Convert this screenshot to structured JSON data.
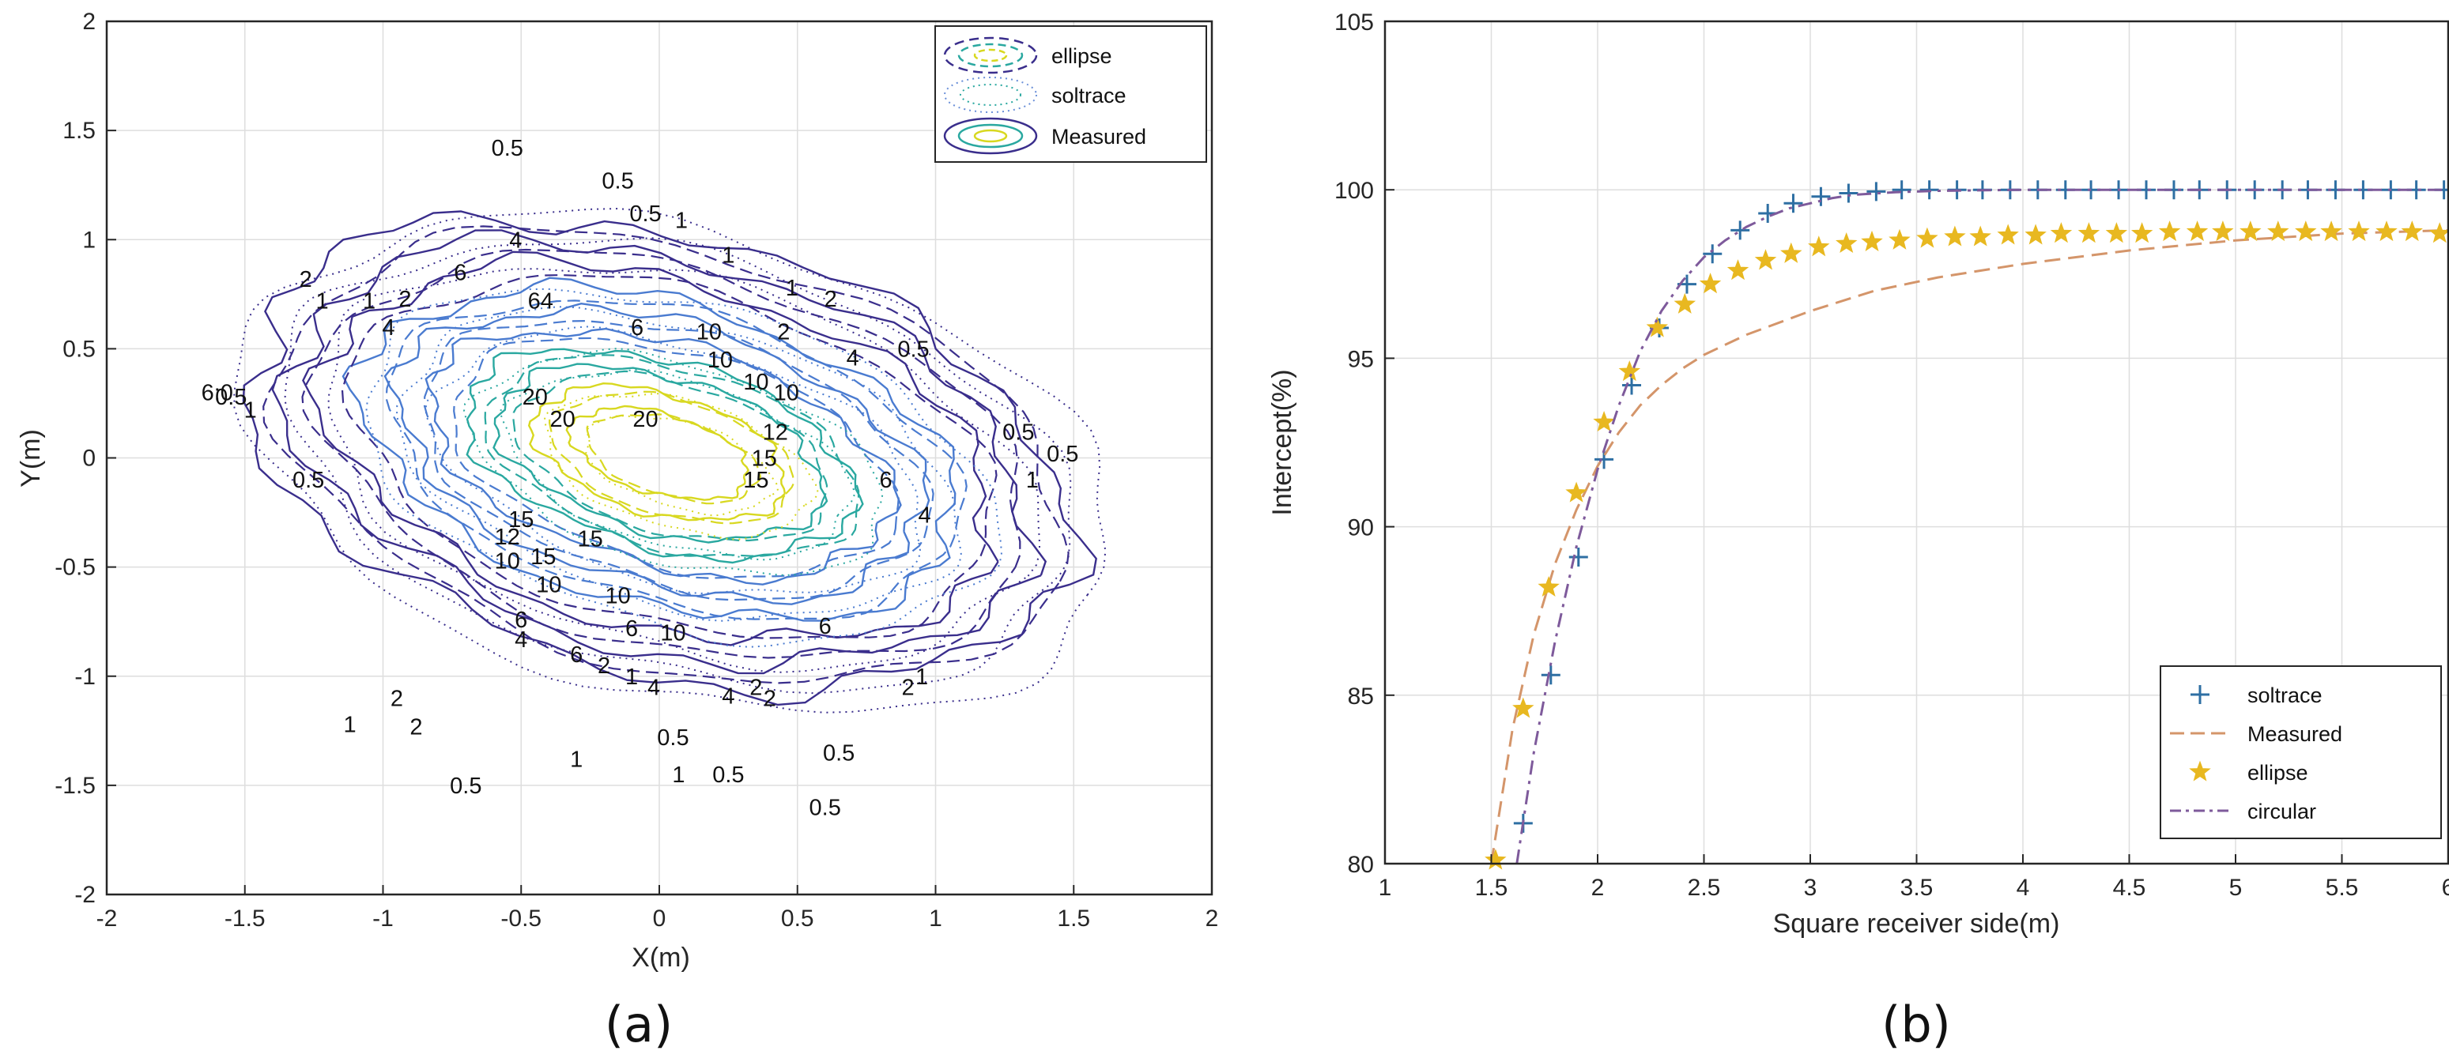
{
  "chart_data": [
    {
      "panel": "(a)",
      "type": "contour",
      "xlabel": "X(m)",
      "ylabel": "Y(m)",
      "xlim": [
        -2,
        2
      ],
      "ylim": [
        -2,
        2
      ],
      "xticks": [
        "-2",
        "-1.5",
        "-1",
        "-0.5",
        "0",
        "0.5",
        "1",
        "1.5",
        "2"
      ],
      "yticks": [
        "-2",
        "-1.5",
        "-1",
        "-0.5",
        "0",
        "0.5",
        "1",
        "1.5",
        "2"
      ],
      "grid": true,
      "legend": {
        "position": "top-right",
        "entries": [
          "ellipse",
          "soltrace",
          "Measured"
        ]
      },
      "levels": [
        0.5,
        1,
        2,
        4,
        6,
        10,
        12,
        15,
        20
      ],
      "colors": {
        "low": "#3a2e8c",
        "mid": "#4a7bd0",
        "teal": "#2aa8a0",
        "high": "#d8d820"
      },
      "contour_labels": [
        {
          "t": "0.5",
          "x": -0.55,
          "y": 1.42
        },
        {
          "t": "0.5",
          "x": -0.15,
          "y": 1.27
        },
        {
          "t": "0.5",
          "x": -0.05,
          "y": 1.12
        },
        {
          "t": "1",
          "x": 0.08,
          "y": 1.09
        },
        {
          "t": "1",
          "x": 0.25,
          "y": 0.93
        },
        {
          "t": "4",
          "x": -0.52,
          "y": 1.0
        },
        {
          "t": "6",
          "x": -0.72,
          "y": 0.85
        },
        {
          "t": "64",
          "x": -0.43,
          "y": 0.72
        },
        {
          "t": "6",
          "x": -0.08,
          "y": 0.6
        },
        {
          "t": "2",
          "x": -0.92,
          "y": 0.73
        },
        {
          "t": "4",
          "x": -0.98,
          "y": 0.6
        },
        {
          "t": "1",
          "x": -1.05,
          "y": 0.72
        },
        {
          "t": "2",
          "x": -1.28,
          "y": 0.82
        },
        {
          "t": "1",
          "x": -1.22,
          "y": 0.72
        },
        {
          "t": "1",
          "x": 0.48,
          "y": 0.78
        },
        {
          "t": "2",
          "x": 0.62,
          "y": 0.73
        },
        {
          "t": "2",
          "x": 0.45,
          "y": 0.58
        },
        {
          "t": "4",
          "x": 0.7,
          "y": 0.46
        },
        {
          "t": "10",
          "x": 0.18,
          "y": 0.58
        },
        {
          "t": "10",
          "x": 0.22,
          "y": 0.45
        },
        {
          "t": "10",
          "x": 0.35,
          "y": 0.35
        },
        {
          "t": "10",
          "x": 0.46,
          "y": 0.3
        },
        {
          "t": "0.5",
          "x": 0.92,
          "y": 0.5
        },
        {
          "t": "0.5",
          "x": 1.3,
          "y": 0.12
        },
        {
          "t": "0.5",
          "x": 1.46,
          "y": 0.02
        },
        {
          "t": "1",
          "x": 1.35,
          "y": -0.1
        },
        {
          "t": "20",
          "x": -0.45,
          "y": 0.28
        },
        {
          "t": "20",
          "x": -0.35,
          "y": 0.18
        },
        {
          "t": "20",
          "x": -0.05,
          "y": 0.18
        },
        {
          "t": "12",
          "x": 0.42,
          "y": 0.12
        },
        {
          "t": "15",
          "x": 0.38,
          "y": 0.0
        },
        {
          "t": "15",
          "x": 0.35,
          "y": -0.1
        },
        {
          "t": "6",
          "x": 0.82,
          "y": -0.1
        },
        {
          "t": "4",
          "x": 0.96,
          "y": -0.26
        },
        {
          "t": "15",
          "x": -0.5,
          "y": -0.28
        },
        {
          "t": "12",
          "x": -0.55,
          "y": -0.36
        },
        {
          "t": "15",
          "x": -0.42,
          "y": -0.45
        },
        {
          "t": "15",
          "x": -0.25,
          "y": -0.37
        },
        {
          "t": "10",
          "x": -0.55,
          "y": -0.47
        },
        {
          "t": "10",
          "x": -0.4,
          "y": -0.58
        },
        {
          "t": "10",
          "x": -0.15,
          "y": -0.63
        },
        {
          "t": "6",
          "x": -0.5,
          "y": -0.74
        },
        {
          "t": "6",
          "x": -0.1,
          "y": -0.78
        },
        {
          "t": "10",
          "x": 0.05,
          "y": -0.8
        },
        {
          "t": "6",
          "x": 0.6,
          "y": -0.77
        },
        {
          "t": "4",
          "x": -0.5,
          "y": -0.83
        },
        {
          "t": "6",
          "x": -0.3,
          "y": -0.9
        },
        {
          "t": "2",
          "x": -0.2,
          "y": -0.95
        },
        {
          "t": "1",
          "x": -0.1,
          "y": -1.0
        },
        {
          "t": "4",
          "x": -0.02,
          "y": -1.05
        },
        {
          "t": "4",
          "x": 0.25,
          "y": -1.09
        },
        {
          "t": "2",
          "x": 0.35,
          "y": -1.05
        },
        {
          "t": "2",
          "x": 0.4,
          "y": -1.1
        },
        {
          "t": "2",
          "x": -0.95,
          "y": -1.1
        },
        {
          "t": "1",
          "x": -1.12,
          "y": -1.22
        },
        {
          "t": "2",
          "x": -0.88,
          "y": -1.23
        },
        {
          "t": "2",
          "x": 0.9,
          "y": -1.05
        },
        {
          "t": "1",
          "x": 0.95,
          "y": -1.0
        },
        {
          "t": "0.5",
          "x": 0.05,
          "y": -1.28
        },
        {
          "t": "0.5",
          "x": 0.65,
          "y": -1.35
        },
        {
          "t": "1",
          "x": -0.3,
          "y": -1.38
        },
        {
          "t": "1",
          "x": 0.07,
          "y": -1.45
        },
        {
          "t": "0.5",
          "x": 0.25,
          "y": -1.45
        },
        {
          "t": "0.5",
          "x": -0.7,
          "y": -1.5
        },
        {
          "t": "0.5",
          "x": 0.6,
          "y": -1.6
        },
        {
          "t": "0.5",
          "x": -1.27,
          "y": -0.1
        },
        {
          "t": "6:0",
          "x": -1.6,
          "y": 0.3
        },
        {
          "t": "0.5",
          "x": -1.55,
          "y": 0.28
        },
        {
          "t": "1",
          "x": -1.48,
          "y": 0.22
        }
      ]
    },
    {
      "panel": "(b)",
      "type": "line",
      "xlabel": "Square receiver side(m)",
      "ylabel": "Intercept(%)",
      "xlim": [
        1,
        6
      ],
      "ylim": [
        80,
        105
      ],
      "xticks": [
        "1",
        "1.5",
        "2",
        "2.5",
        "3",
        "3.5",
        "4",
        "4.5",
        "5",
        "5.5",
        "6"
      ],
      "yticks": [
        "80",
        "85",
        "90",
        "95",
        "100",
        "105"
      ],
      "grid": true,
      "legend": {
        "position": "bottom-right"
      },
      "series": [
        {
          "name": "soltrace",
          "style": "plus-marker",
          "color": "#2e6fa3",
          "x": [
            1.65,
            1.78,
            1.91,
            2.03,
            2.16,
            2.29,
            2.42,
            2.54,
            2.67,
            2.8,
            2.92,
            3.05,
            3.18,
            3.31,
            3.43,
            3.56,
            3.69,
            3.81,
            3.94,
            4.07,
            4.2,
            4.32,
            4.45,
            4.58,
            4.71,
            4.83,
            4.96,
            5.09,
            5.22,
            5.34,
            5.47,
            5.6,
            5.73,
            5.85,
            5.98
          ],
          "y": [
            81.2,
            85.6,
            89.1,
            92.0,
            94.2,
            95.9,
            97.2,
            98.1,
            98.8,
            99.3,
            99.6,
            99.8,
            99.9,
            99.95,
            100.0,
            100.0,
            100.0,
            100.0,
            100.0,
            100.0,
            100.0,
            100.0,
            100.0,
            100.0,
            100.0,
            100.0,
            100.0,
            100.0,
            100.0,
            100.0,
            100.0,
            100.0,
            100.0,
            100.0,
            100.0
          ]
        },
        {
          "name": "Measured",
          "style": "dashed",
          "color": "#d4956a",
          "x": [
            1.5,
            1.6,
            1.7,
            1.8,
            1.9,
            2.0,
            2.1,
            2.2,
            2.3,
            2.4,
            2.5,
            2.7,
            3.0,
            3.3,
            3.6,
            4.0,
            4.5,
            5.0,
            5.5,
            6.0
          ],
          "y": [
            80.0,
            84.0,
            86.8,
            88.9,
            90.5,
            91.8,
            92.8,
            93.6,
            94.2,
            94.7,
            95.1,
            95.7,
            96.4,
            97.0,
            97.4,
            97.8,
            98.2,
            98.5,
            98.7,
            98.8
          ]
        },
        {
          "name": "ellipse",
          "style": "star-marker",
          "color": "#e8b820",
          "x": [
            1.52,
            1.65,
            1.77,
            1.9,
            2.03,
            2.15,
            2.28,
            2.41,
            2.53,
            2.66,
            2.79,
            2.91,
            3.04,
            3.17,
            3.29,
            3.42,
            3.55,
            3.68,
            3.8,
            3.93,
            4.06,
            4.18,
            4.31,
            4.44,
            4.56,
            4.69,
            4.82,
            4.94,
            5.07,
            5.2,
            5.33,
            5.45,
            5.58,
            5.71,
            5.83,
            5.96
          ],
          "y": [
            80.1,
            84.6,
            88.2,
            91.0,
            93.1,
            94.6,
            95.9,
            96.6,
            97.2,
            97.6,
            97.9,
            98.1,
            98.3,
            98.4,
            98.45,
            98.5,
            98.55,
            98.6,
            98.6,
            98.65,
            98.65,
            98.7,
            98.7,
            98.7,
            98.7,
            98.75,
            98.75,
            98.75,
            98.75,
            98.75,
            98.75,
            98.75,
            98.75,
            98.75,
            98.75,
            98.7
          ]
        },
        {
          "name": "circular",
          "style": "dash-dot",
          "color": "#7e5a9b",
          "x": [
            1.62,
            1.7,
            1.8,
            1.9,
            2.0,
            2.1,
            2.2,
            2.3,
            2.4,
            2.5,
            2.6,
            2.7,
            2.8,
            2.9,
            3.0,
            3.1,
            3.2,
            3.4,
            3.6,
            4.0,
            5.0,
            6.0
          ],
          "y": [
            80.0,
            83.3,
            86.6,
            89.4,
            91.7,
            93.6,
            95.2,
            96.4,
            97.3,
            98.0,
            98.5,
            98.9,
            99.2,
            99.45,
            99.6,
            99.75,
            99.85,
            99.93,
            99.97,
            100.0,
            100.0,
            100.0
          ]
        }
      ]
    }
  ]
}
